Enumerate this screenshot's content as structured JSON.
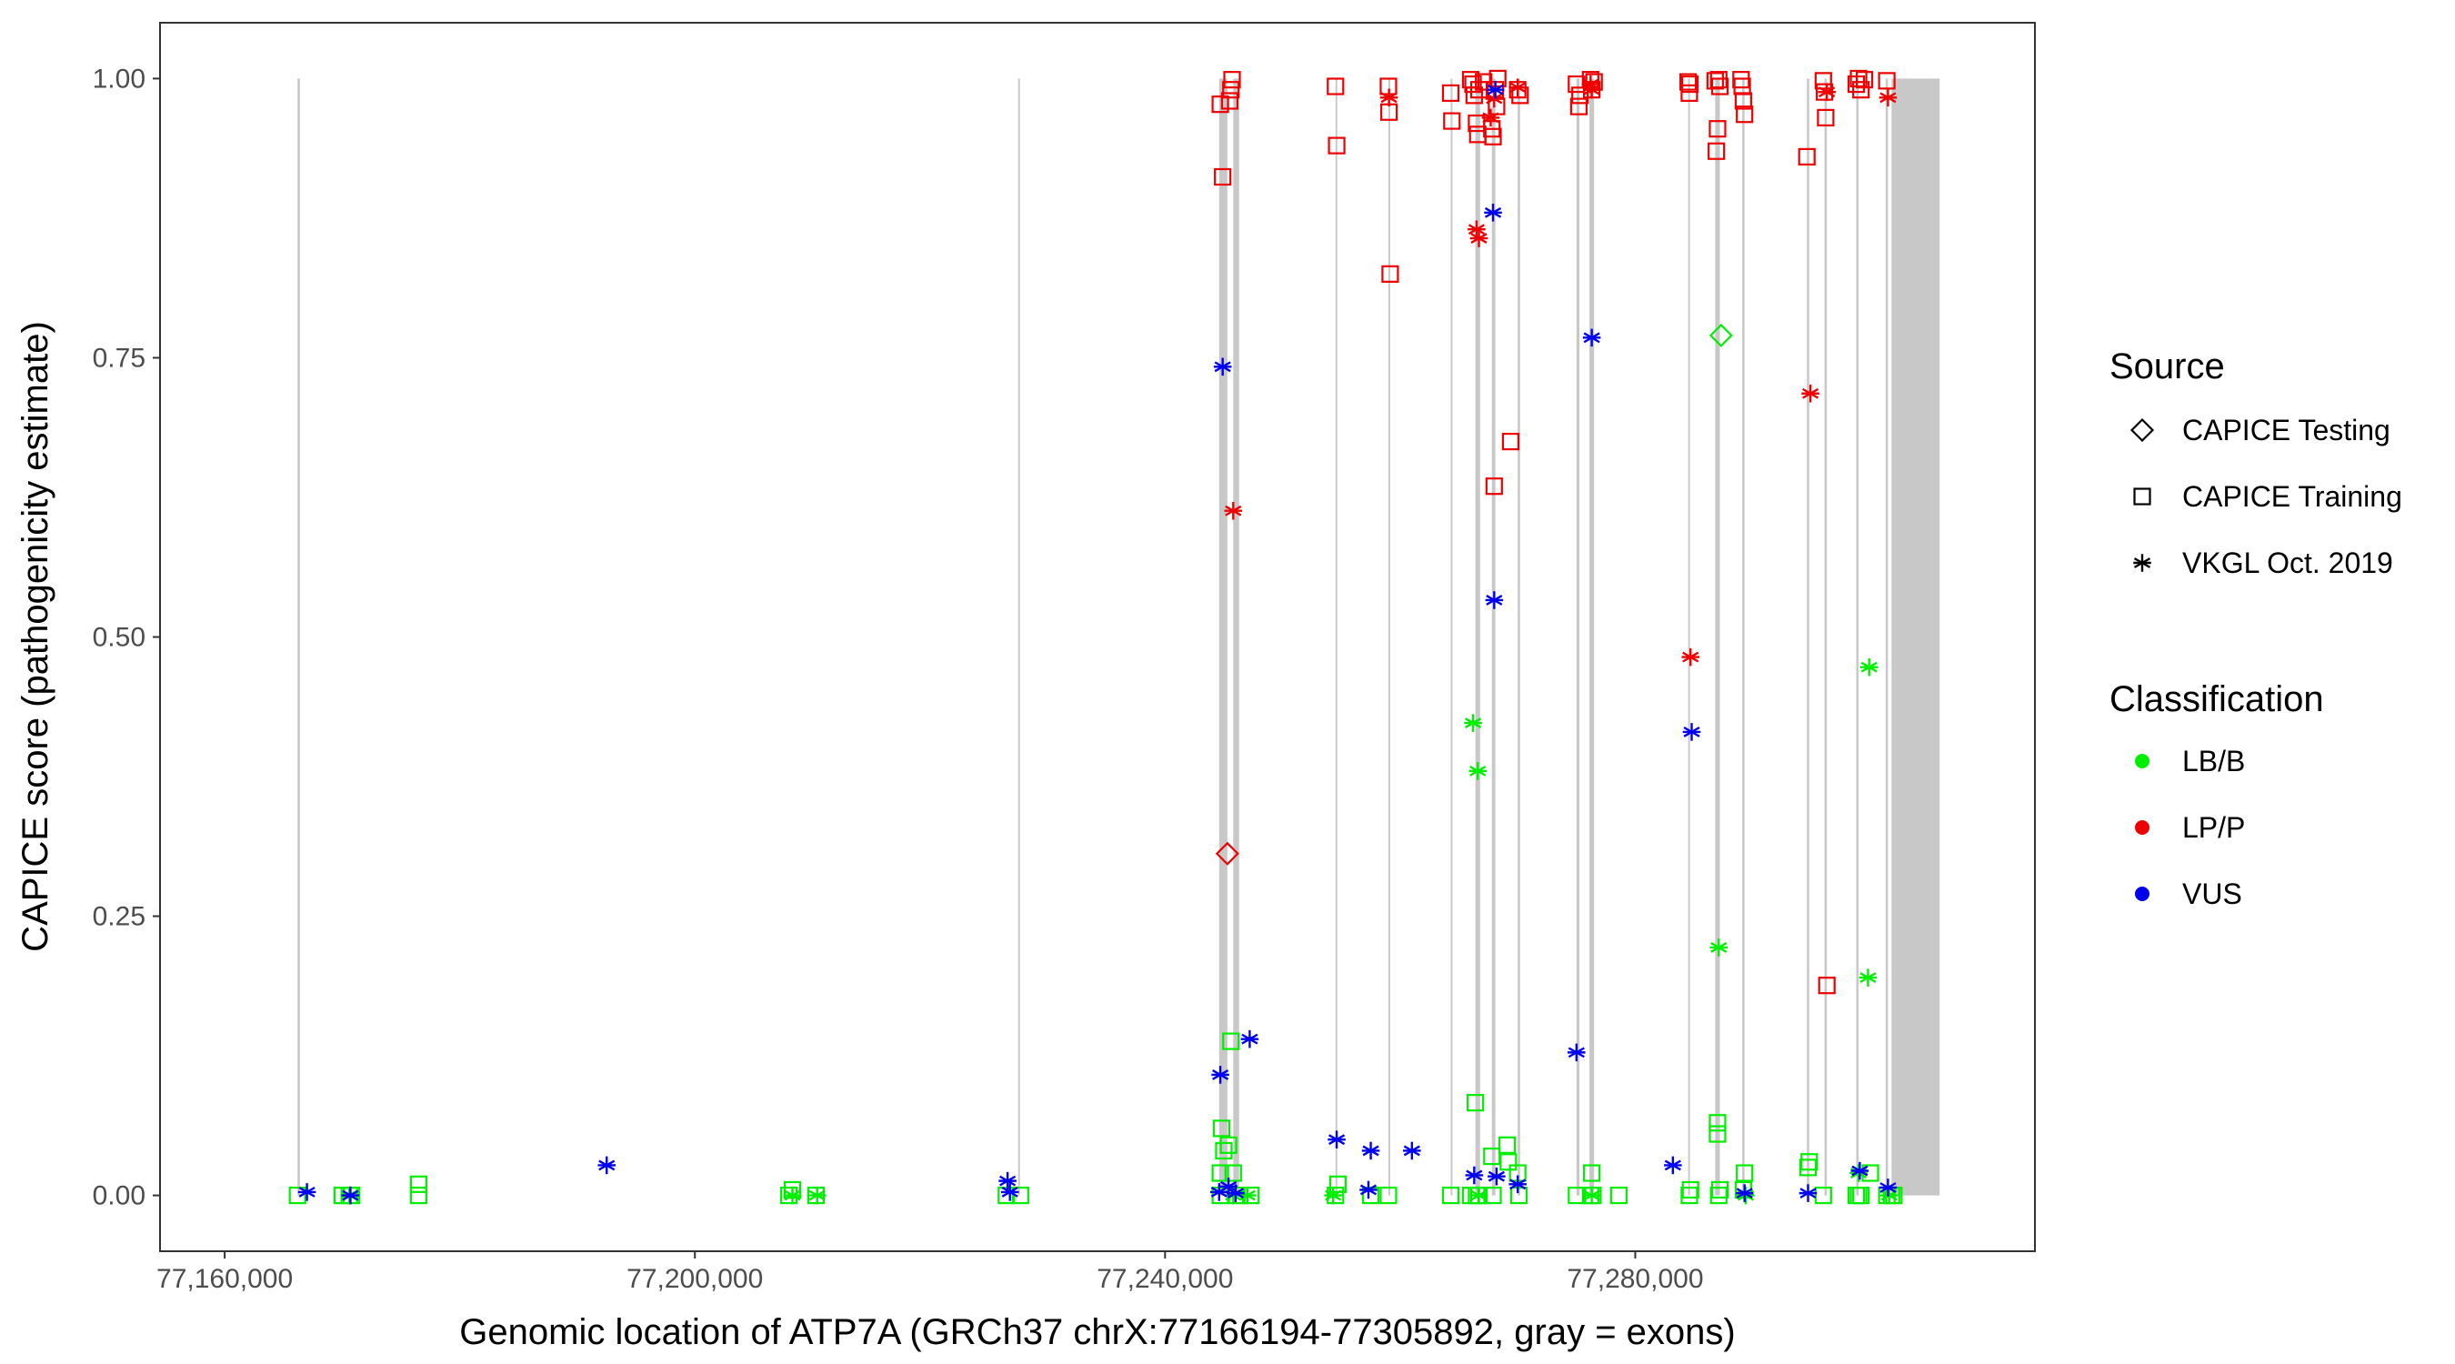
{
  "chart_data": {
    "type": "scatter",
    "title": "",
    "xlabel": "Genomic location of ATP7A (GRCh37 chrX:77166194-77305892, gray = exons)",
    "ylabel": "CAPICE score (pathogenicity estimate)",
    "xlim": [
      77154500,
      77314000
    ],
    "ylim": [
      -0.05,
      1.05
    ],
    "x_ticks": [
      77160000,
      77200000,
      77240000,
      77280000
    ],
    "x_tick_labels": [
      "77,160,000",
      "77,200,000",
      "77,240,000",
      "77,280,000"
    ],
    "y_ticks": [
      0,
      0.25,
      0.5,
      0.75,
      1
    ],
    "y_tick_labels": [
      "0.00",
      "0.25",
      "0.50",
      "0.75",
      "1.00"
    ],
    "exons": [
      [
        77166194,
        77166400
      ],
      [
        77227500,
        77227650
      ],
      [
        77244600,
        77245300
      ],
      [
        77245800,
        77246300
      ],
      [
        77254500,
        77254650
      ],
      [
        77259000,
        77259150
      ],
      [
        77264300,
        77264450
      ],
      [
        77266400,
        77266800
      ],
      [
        77267800,
        77268100
      ],
      [
        77270000,
        77270200
      ],
      [
        77275000,
        77275250
      ],
      [
        77276100,
        77276500
      ],
      [
        77284500,
        77284650
      ],
      [
        77286800,
        77287200
      ],
      [
        77289100,
        77289300
      ],
      [
        77294600,
        77294800
      ],
      [
        77296100,
        77296300
      ],
      [
        77298800,
        77299000
      ],
      [
        77301300,
        77301500
      ],
      [
        77301800,
        77305892
      ]
    ],
    "legend": {
      "source_title": "Source",
      "sources": [
        {
          "name": "CAPICE Testing",
          "shape": "diamond"
        },
        {
          "name": "CAPICE Training",
          "shape": "square"
        },
        {
          "name": "VKGL Oct. 2019",
          "shape": "asterisk"
        }
      ],
      "class_title": "Classification",
      "classes": [
        {
          "name": "LB/B",
          "color": "#00ee00"
        },
        {
          "name": "LP/P",
          "color": "#ee0000"
        },
        {
          "name": "VUS",
          "color": "#0000ee"
        }
      ]
    },
    "series": [
      {
        "name": "CAPICE Training / LB/B",
        "shape": "square",
        "color": "#00ee00",
        "points": [
          [
            77166194,
            0
          ],
          [
            77170000,
            0
          ],
          [
            77170600,
            0
          ],
          [
            77170800,
            0
          ],
          [
            77176500,
            0.01
          ],
          [
            77176500,
            0
          ],
          [
            77208000,
            0
          ],
          [
            77208300,
            0.005
          ],
          [
            77210300,
            0
          ],
          [
            77226500,
            0
          ],
          [
            77227700,
            0
          ],
          [
            77244700,
            0
          ],
          [
            77244700,
            0.02
          ],
          [
            77244800,
            0.06
          ],
          [
            77245000,
            0.04
          ],
          [
            77245400,
            0.045
          ],
          [
            77245600,
            0.138
          ],
          [
            77245800,
            0.02
          ],
          [
            77246100,
            0
          ],
          [
            77247300,
            0
          ],
          [
            77254500,
            0
          ],
          [
            77254700,
            0.01
          ],
          [
            77257500,
            0
          ],
          [
            77259000,
            0
          ],
          [
            77264300,
            0
          ],
          [
            77266000,
            0
          ],
          [
            77266400,
            0.083
          ],
          [
            77266500,
            0
          ],
          [
            77266700,
            0
          ],
          [
            77267800,
            0.035
          ],
          [
            77267900,
            0
          ],
          [
            77269100,
            0.045
          ],
          [
            77269200,
            0.03
          ],
          [
            77270000,
            0.02
          ],
          [
            77270100,
            0
          ],
          [
            77275000,
            0
          ],
          [
            77276200,
            0
          ],
          [
            77276300,
            0.02
          ],
          [
            77276400,
            0
          ],
          [
            77278600,
            0
          ],
          [
            77284600,
            0
          ],
          [
            77284700,
            0.005
          ],
          [
            77287000,
            0.065
          ],
          [
            77287000,
            0.055
          ],
          [
            77287100,
            0
          ],
          [
            77287200,
            0.005
          ],
          [
            77289200,
            0.005
          ],
          [
            77289300,
            0.02
          ],
          [
            77294700,
            0.025
          ],
          [
            77294800,
            0.03
          ],
          [
            77296000,
            0
          ],
          [
            77298800,
            0
          ],
          [
            77299000,
            0
          ],
          [
            77299200,
            0
          ],
          [
            77300000,
            0.02
          ],
          [
            77301400,
            0
          ],
          [
            77301800,
            0
          ],
          [
            77302000,
            0
          ]
        ]
      },
      {
        "name": "CAPICE Training / LP/P",
        "shape": "square",
        "color": "#ee0000",
        "points": [
          [
            77244700,
            0.977
          ],
          [
            77244900,
            0.912
          ],
          [
            77245500,
            0.98
          ],
          [
            77245600,
            0.99
          ],
          [
            77245700,
            0.999
          ],
          [
            77254500,
            0.993
          ],
          [
            77254600,
            0.94
          ],
          [
            77259000,
            0.993
          ],
          [
            77259050,
            0.97
          ],
          [
            77259150,
            0.825
          ],
          [
            77264300,
            0.987
          ],
          [
            77264400,
            0.962
          ],
          [
            77266000,
            0.999
          ],
          [
            77266200,
            0.995
          ],
          [
            77266300,
            0.985
          ],
          [
            77266500,
            0.96
          ],
          [
            77266600,
            0.95
          ],
          [
            77266700,
            0.99
          ],
          [
            77267100,
            0.997
          ],
          [
            77267800,
            0.955
          ],
          [
            77267900,
            0.948
          ],
          [
            77268000,
            0.635
          ],
          [
            77268100,
            0.99
          ],
          [
            77268200,
            0.975
          ],
          [
            77268300,
            1.0
          ],
          [
            77269400,
            0.675
          ],
          [
            77270000,
            0.99
          ],
          [
            77270200,
            0.985
          ],
          [
            77275000,
            0.995
          ],
          [
            77275200,
            0.975
          ],
          [
            77275300,
            0.985
          ],
          [
            77276200,
            0.999
          ],
          [
            77276300,
            0.99
          ],
          [
            77276500,
            0.997
          ],
          [
            77284500,
            0.997
          ],
          [
            77284600,
            0.987
          ],
          [
            77284650,
            0.995
          ],
          [
            77286800,
            0.998
          ],
          [
            77286900,
            0.935
          ],
          [
            77287000,
            0.955
          ],
          [
            77287100,
            0.999
          ],
          [
            77287200,
            0.993
          ],
          [
            77289000,
            0.999
          ],
          [
            77289100,
            0.993
          ],
          [
            77289200,
            0.98
          ],
          [
            77289300,
            0.968
          ],
          [
            77294600,
            0.93
          ],
          [
            77296000,
            0.998
          ],
          [
            77296100,
            0.988
          ],
          [
            77296200,
            0.965
          ],
          [
            77296300,
            0.188
          ],
          [
            77298800,
            0.995
          ],
          [
            77299000,
            1.0
          ],
          [
            77299200,
            0.99
          ],
          [
            77299500,
            0.999
          ],
          [
            77301400,
            0.998
          ]
        ]
      },
      {
        "name": "CAPICE Testing / LB/B",
        "shape": "diamond",
        "color": "#00ee00",
        "points": [
          [
            77287300,
            0.77
          ]
        ]
      },
      {
        "name": "CAPICE Testing / LP/P",
        "shape": "diamond",
        "color": "#ee0000",
        "points": [
          [
            77245300,
            0.306
          ]
        ]
      },
      {
        "name": "VKGL / LB/B",
        "shape": "asterisk",
        "color": "#00ee00",
        "points": [
          [
            77170600,
            0
          ],
          [
            77208300,
            0
          ],
          [
            77210400,
            0
          ],
          [
            77245800,
            0
          ],
          [
            77247000,
            0
          ],
          [
            77254300,
            0
          ],
          [
            77266200,
            0.423
          ],
          [
            77266600,
            0.38
          ],
          [
            77266700,
            0
          ],
          [
            77276300,
            0
          ],
          [
            77287100,
            0.222
          ],
          [
            77289400,
            0
          ],
          [
            77299000,
            0.02
          ],
          [
            77299800,
            0.195
          ],
          [
            77299900,
            0.473
          ],
          [
            77301600,
            0
          ]
        ]
      },
      {
        "name": "VKGL / LP/P",
        "shape": "asterisk",
        "color": "#ee0000",
        "points": [
          [
            77245800,
            0.613
          ],
          [
            77259050,
            0.983
          ],
          [
            77266500,
            0.865
          ],
          [
            77266700,
            0.857
          ],
          [
            77267700,
            0.965
          ],
          [
            77268000,
            0.982
          ],
          [
            77270000,
            0.992
          ],
          [
            77276200,
            0.995
          ],
          [
            77276300,
            0.99
          ],
          [
            77284700,
            0.482
          ],
          [
            77294900,
            0.718
          ],
          [
            77296300,
            0.988
          ],
          [
            77301500,
            0.983
          ]
        ]
      },
      {
        "name": "VKGL / VUS",
        "shape": "asterisk",
        "color": "#0000ee",
        "points": [
          [
            77167000,
            0.003
          ],
          [
            77170700,
            0
          ],
          [
            77192500,
            0.027
          ],
          [
            77226600,
            0.013
          ],
          [
            77226800,
            0.003
          ],
          [
            77244600,
            0.003
          ],
          [
            77244700,
            0.108
          ],
          [
            77244900,
            0.742
          ],
          [
            77245400,
            0.008
          ],
          [
            77246000,
            0.002
          ],
          [
            77247200,
            0.14
          ],
          [
            77254600,
            0.05
          ],
          [
            77257500,
            0.04
          ],
          [
            77257300,
            0.005
          ],
          [
            77261000,
            0.04
          ],
          [
            77266300,
            0.018
          ],
          [
            77267900,
            0.88
          ],
          [
            77268000,
            0.533
          ],
          [
            77268100,
            0.99
          ],
          [
            77268200,
            0.017
          ],
          [
            77270000,
            0.01
          ],
          [
            77275000,
            0.128
          ],
          [
            77276300,
            0.768
          ],
          [
            77283200,
            0.027
          ],
          [
            77284800,
            0.415
          ],
          [
            77289300,
            0.002
          ],
          [
            77294700,
            0.002
          ],
          [
            77299100,
            0.022
          ],
          [
            77301500,
            0.007
          ]
        ]
      }
    ]
  }
}
